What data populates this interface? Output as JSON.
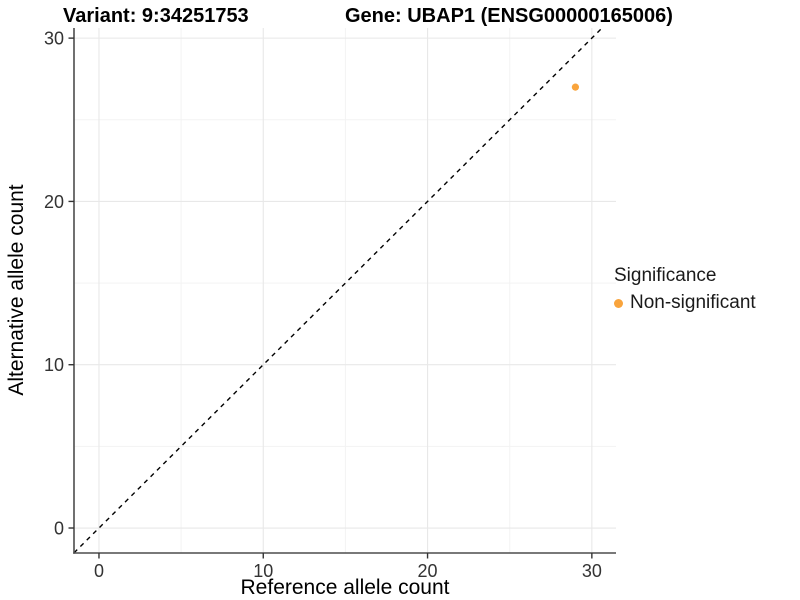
{
  "chart_data": {
    "type": "scatter",
    "title_left": "Variant: 9:34251753",
    "title_right": "Gene: UBAP1 (ENSG00000165006)",
    "xlabel": "Reference allele count",
    "ylabel": "Alternative allele count",
    "xlim": [
      0,
      30
    ],
    "ylim": [
      0,
      30
    ],
    "x_ticks": [
      0,
      10,
      20,
      30
    ],
    "y_ticks": [
      0,
      10,
      20,
      30
    ],
    "x_minor_ticks": [
      5,
      15,
      25
    ],
    "y_minor_ticks": [
      5,
      15,
      25
    ],
    "grid": true,
    "points": [
      {
        "x": 29,
        "y": 27,
        "series": "Non-significant"
      }
    ],
    "identity_line": {
      "slope": 1,
      "intercept": 0,
      "style": "dashed",
      "color": "#000000"
    },
    "legend": {
      "title": "Significance",
      "position": "right",
      "entries": [
        {
          "label": "Non-significant",
          "color": "#F9A43C"
        }
      ]
    },
    "colors": {
      "point": "#F9A43C",
      "grid_major": "#e8e8e8",
      "grid_minor": "#f3f3f3",
      "axis_line": "#4d4d4d",
      "tick_mark": "#333333",
      "tick_text": "#333333",
      "title_text": "#000000"
    }
  }
}
